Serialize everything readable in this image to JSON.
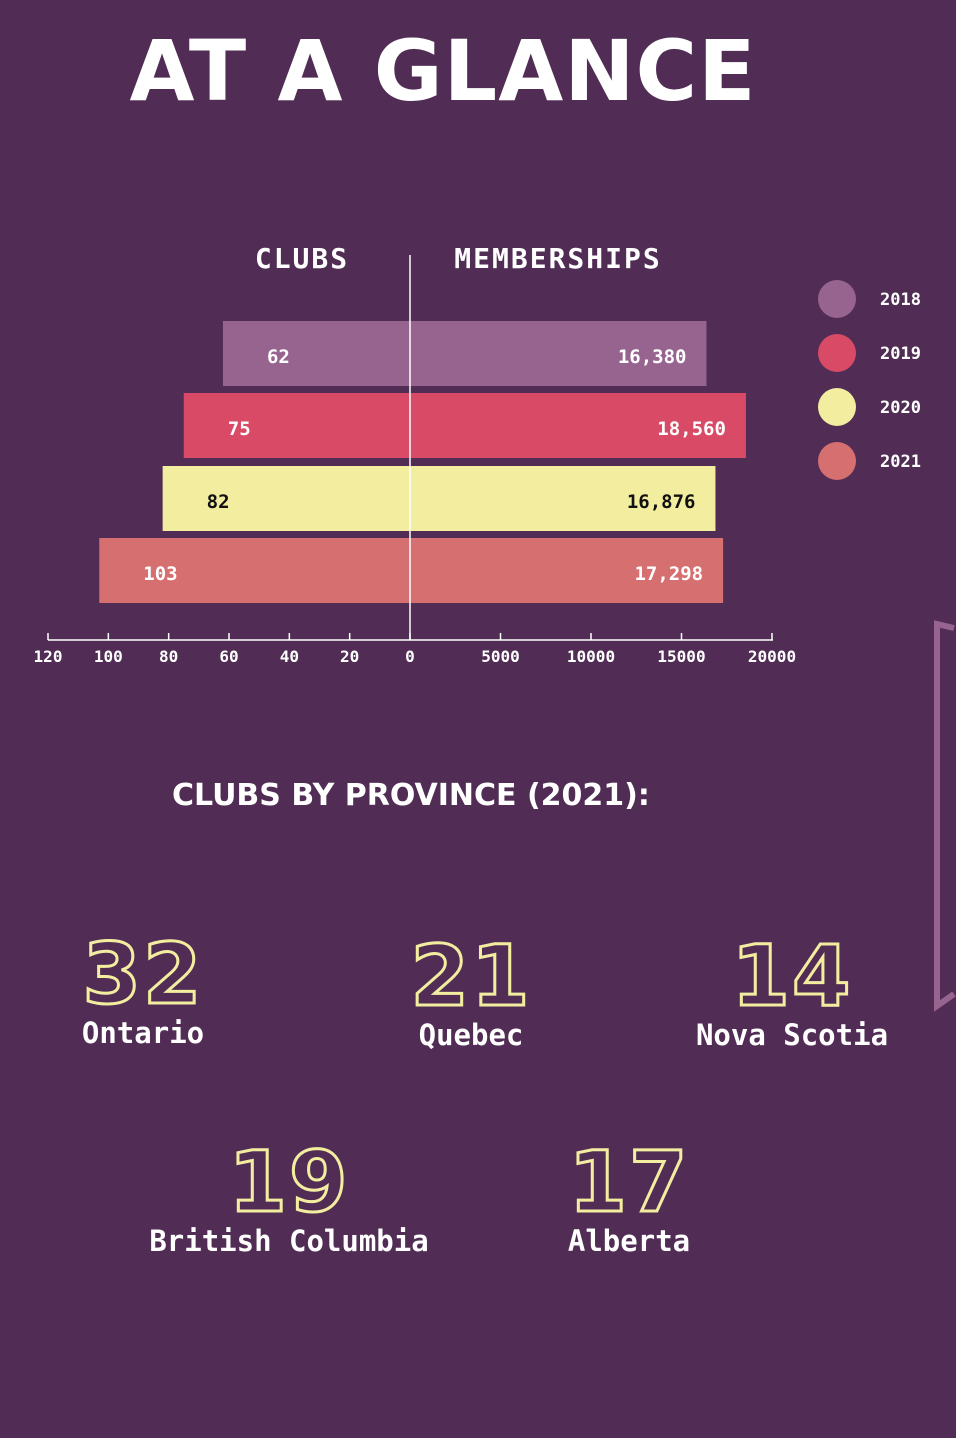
{
  "title": "AT A GLANCE",
  "colors": {
    "background": "#512d55",
    "2018": "#97648f",
    "2019": "#d94a66",
    "2020": "#f3eda0",
    "2021": "#d67070",
    "outline_number": "#f3eda0"
  },
  "chart_data": {
    "type": "bar",
    "subtype": "back-to-back horizontal bar",
    "left_panel_label": "CLUBS",
    "right_panel_label": "MEMBERSHIPS",
    "categories": [
      "2018",
      "2019",
      "2020",
      "2021"
    ],
    "series": [
      {
        "name": "CLUBS",
        "values": [
          62,
          75,
          82,
          103
        ],
        "labels": [
          "62",
          "75",
          "82",
          "103"
        ]
      },
      {
        "name": "MEMBERSHIPS",
        "values": [
          16380,
          18560,
          16876,
          17298
        ],
        "labels": [
          "16,380",
          "18,560",
          "16,876",
          "17,298"
        ]
      }
    ],
    "left_ticks": [
      "120",
      "100",
      "80",
      "60",
      "40",
      "20",
      "0"
    ],
    "right_ticks": [
      "5000",
      "10000",
      "15000",
      "20000"
    ],
    "left_range": [
      0,
      120
    ],
    "right_range": [
      0,
      20000
    ],
    "legend": [
      "2018",
      "2019",
      "2020",
      "2021"
    ],
    "legend_position": "right",
    "grid": false
  },
  "provinces": {
    "title": "CLUBS BY PROVINCE (2021):",
    "items": [
      {
        "value": "32",
        "name": "Ontario"
      },
      {
        "value": "21",
        "name": "Quebec"
      },
      {
        "value": "14",
        "name": "Nova Scotia"
      },
      {
        "value": "19",
        "name": "British Columbia"
      },
      {
        "value": "17",
        "name": "Alberta"
      }
    ]
  }
}
